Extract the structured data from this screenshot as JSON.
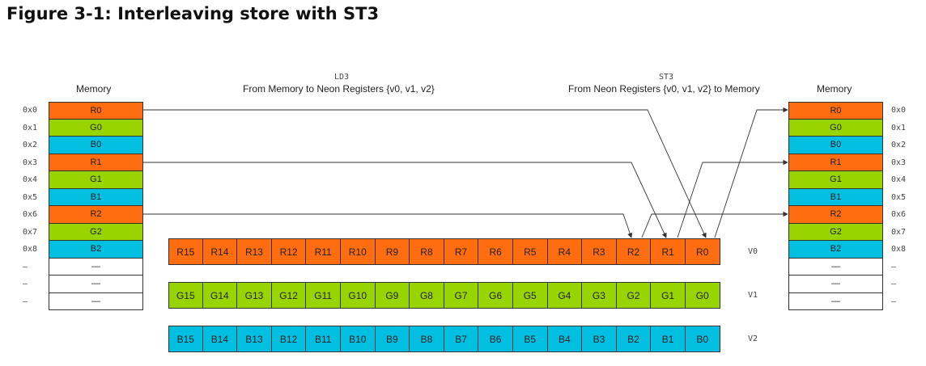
{
  "title": "Figure 3-1: Interleaving store with ST3",
  "ld3": {
    "code": "LD3",
    "caption": "From Memory to Neon Registers {v0, v1, v2}"
  },
  "st3": {
    "code": "ST3",
    "caption": "From Neon Registers {v0, v1, v2} to Memory"
  },
  "left_memory": {
    "heading": "Memory",
    "rows": [
      {
        "addr": "0x0",
        "value": "R0",
        "color": "R"
      },
      {
        "addr": "0x1",
        "value": "G0",
        "color": "G"
      },
      {
        "addr": "0x2",
        "value": "B0",
        "color": "B"
      },
      {
        "addr": "0x3",
        "value": "R1",
        "color": "R"
      },
      {
        "addr": "0x4",
        "value": "G1",
        "color": "G"
      },
      {
        "addr": "0x5",
        "value": "B1",
        "color": "B"
      },
      {
        "addr": "0x6",
        "value": "R2",
        "color": "R"
      },
      {
        "addr": "0x7",
        "value": "G2",
        "color": "G"
      },
      {
        "addr": "0x8",
        "value": "B2",
        "color": "B"
      },
      {
        "addr": "—",
        "value": "—",
        "color": "E"
      },
      {
        "addr": "—",
        "value": "—",
        "color": "E"
      },
      {
        "addr": "—",
        "value": "—",
        "color": "E"
      }
    ]
  },
  "right_memory": {
    "heading": "Memory",
    "rows": [
      {
        "addr": "0x0",
        "value": "R0",
        "color": "R"
      },
      {
        "addr": "0x1",
        "value": "G0",
        "color": "G"
      },
      {
        "addr": "0x2",
        "value": "B0",
        "color": "B"
      },
      {
        "addr": "0x3",
        "value": "R1",
        "color": "R"
      },
      {
        "addr": "0x4",
        "value": "G1",
        "color": "G"
      },
      {
        "addr": "0x5",
        "value": "B1",
        "color": "B"
      },
      {
        "addr": "0x6",
        "value": "R2",
        "color": "R"
      },
      {
        "addr": "0x7",
        "value": "G2",
        "color": "G"
      },
      {
        "addr": "0x8",
        "value": "B2",
        "color": "B"
      },
      {
        "addr": "—",
        "value": "—",
        "color": "E"
      },
      {
        "addr": "—",
        "value": "—",
        "color": "E"
      },
      {
        "addr": "—",
        "value": "—",
        "color": "E"
      }
    ]
  },
  "registers": [
    {
      "name": "V0",
      "color": "R",
      "lanes": [
        "R15",
        "R14",
        "R13",
        "R12",
        "R11",
        "R10",
        "R9",
        "R8",
        "R7",
        "R6",
        "R5",
        "R4",
        "R3",
        "R2",
        "R1",
        "R0"
      ]
    },
    {
      "name": "V1",
      "color": "G",
      "lanes": [
        "G15",
        "G14",
        "G13",
        "G12",
        "G11",
        "G10",
        "G9",
        "G8",
        "G7",
        "G6",
        "G5",
        "G4",
        "G3",
        "G2",
        "G1",
        "G0"
      ]
    },
    {
      "name": "V2",
      "color": "B",
      "lanes": [
        "B15",
        "B14",
        "B13",
        "B12",
        "B11",
        "B10",
        "B9",
        "B8",
        "B7",
        "B6",
        "B5",
        "B4",
        "B3",
        "B2",
        "B1",
        "B0"
      ]
    }
  ],
  "colors": {
    "R": "#ff6d10",
    "G": "#97d400",
    "B": "#00bfe0",
    "E": "#ffffff"
  }
}
